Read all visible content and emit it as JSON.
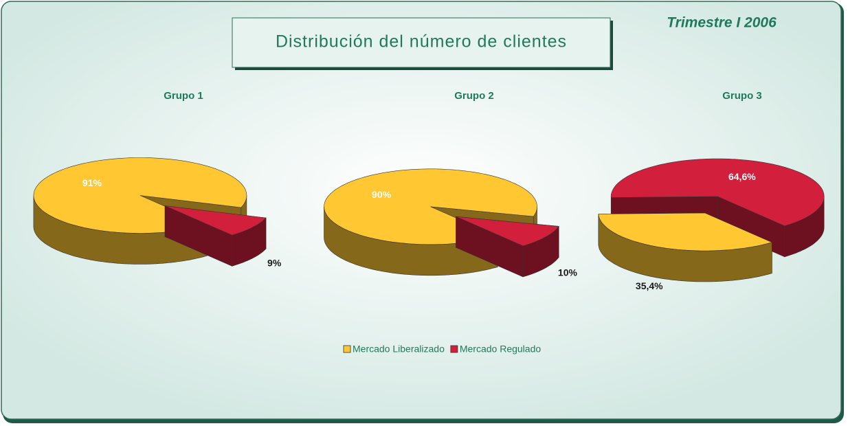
{
  "title": "Distribución del número de clientes",
  "subtitle": "Trimestre I 2006",
  "chart_data": [
    {
      "type": "pie",
      "title": "Grupo 1",
      "categories": [
        "Mercado Liberalizado",
        "Mercado Regulado"
      ],
      "values": [
        91,
        9
      ],
      "value_labels": [
        "91%",
        "9%"
      ],
      "colors": [
        "#ffc832",
        "#d21f3c"
      ]
    },
    {
      "type": "pie",
      "title": "Grupo 2",
      "categories": [
        "Mercado Liberalizado",
        "Mercado Regulado"
      ],
      "values": [
        90,
        10
      ],
      "value_labels": [
        "90%",
        "10%"
      ],
      "colors": [
        "#ffc832",
        "#d21f3c"
      ]
    },
    {
      "type": "pie",
      "title": "Grupo 3",
      "categories": [
        "Mercado Liberalizado",
        "Mercado Regulado"
      ],
      "values": [
        35.4,
        64.6
      ],
      "value_labels": [
        "35,4%",
        "64,6%"
      ],
      "colors": [
        "#ffc832",
        "#d21f3c"
      ]
    }
  ]
}
